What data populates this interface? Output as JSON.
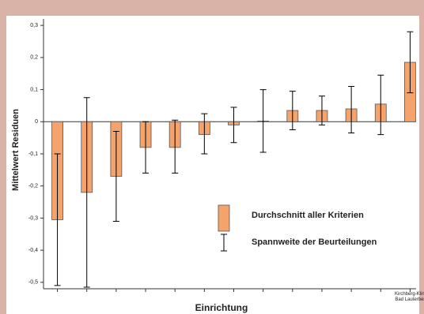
{
  "chart_data": {
    "type": "bar",
    "y_label": "Mittelwert Residuen",
    "x_label": "Einrichtung",
    "categories": [
      null,
      null,
      null,
      null,
      null,
      null,
      null,
      null,
      null,
      null,
      null,
      null,
      "Kirchberg-Klinik Bad Lauterberg"
    ],
    "series": [
      {
        "name": "Durchschnitt aller Kriterien",
        "color": "#f5a36c",
        "values": [
          -0.305,
          -0.22,
          -0.17,
          -0.08,
          -0.08,
          -0.04,
          -0.01,
          0.002,
          0.035,
          0.035,
          0.04,
          0.055,
          0.185
        ]
      },
      {
        "name": "Spannweite der Beurteilungen",
        "color": "#000000",
        "low": [
          -0.51,
          -0.515,
          -0.31,
          -0.16,
          -0.16,
          -0.1,
          -0.065,
          -0.095,
          -0.025,
          -0.01,
          -0.035,
          -0.04,
          0.09
        ],
        "high": [
          -0.1,
          0.075,
          -0.03,
          0.0,
          0.005,
          0.025,
          0.045,
          0.1,
          0.095,
          0.08,
          0.11,
          0.145,
          0.28
        ]
      }
    ],
    "ylim": [
      -0.52,
      0.32
    ],
    "yticks": [
      {
        "value": -0.5,
        "label": "-0,5"
      },
      {
        "value": -0.4,
        "label": "-0,4"
      },
      {
        "value": -0.3,
        "label": "-0,3"
      },
      {
        "value": -0.2,
        "label": "-0,2"
      },
      {
        "value": -0.1,
        "label": "-0,1"
      },
      0,
      {
        "value": 0.1,
        "label": "0,1"
      },
      {
        "value": 0.2,
        "label": "0,2"
      },
      {
        "value": 0.3,
        "label": "0,3"
      }
    ],
    "grid": false
  }
}
